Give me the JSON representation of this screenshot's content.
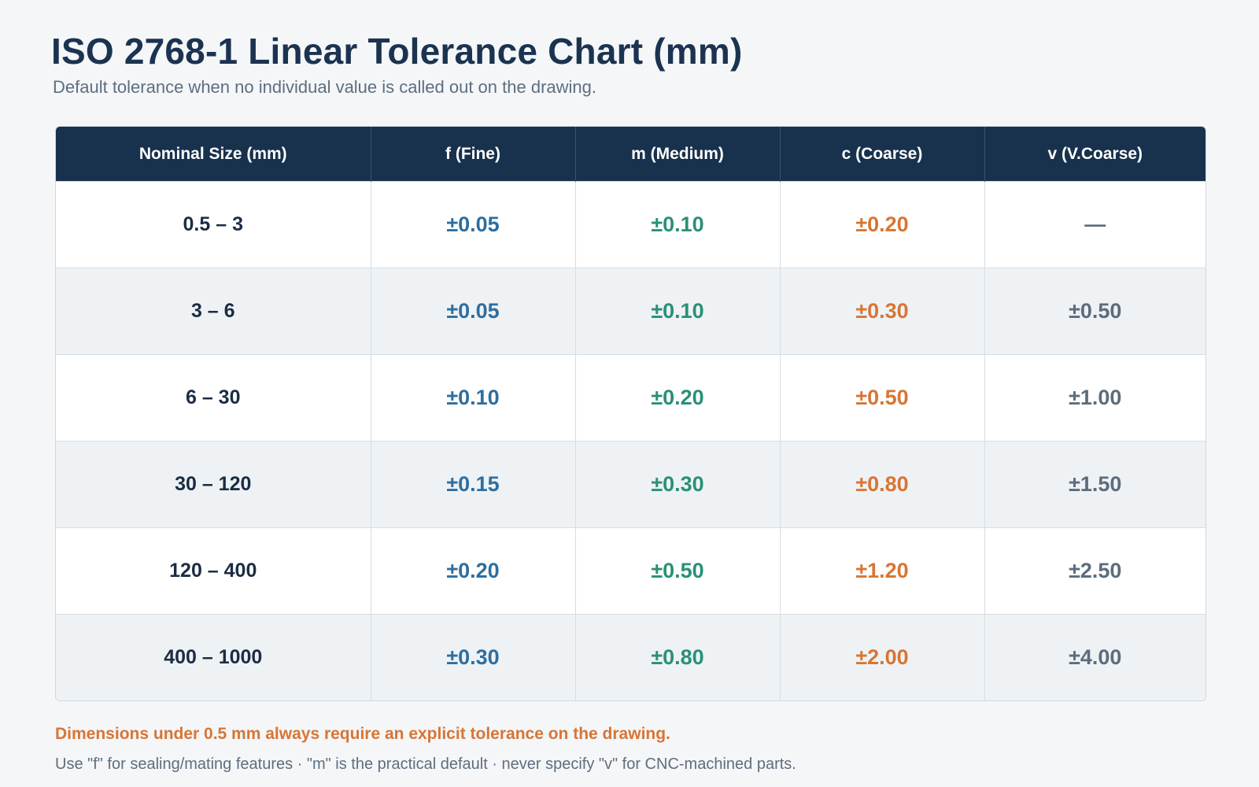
{
  "header": {
    "title": "ISO 2768-1 Linear Tolerance Chart (mm)",
    "subtitle": "Default tolerance when no individual value is called out on the drawing."
  },
  "table": {
    "columns": [
      "Nominal Size (mm)",
      "f (Fine)",
      "m (Medium)",
      "c (Coarse)",
      "v (V.Coarse)"
    ],
    "rows": [
      [
        "0.5 – 3",
        "±0.05",
        "±0.10",
        "±0.20",
        "—"
      ],
      [
        "3 – 6",
        "±0.05",
        "±0.10",
        "±0.30",
        "±0.50"
      ],
      [
        "6 – 30",
        "±0.10",
        "±0.20",
        "±0.50",
        "±1.00"
      ],
      [
        "30 – 120",
        "±0.15",
        "±0.30",
        "±0.80",
        "±1.50"
      ],
      [
        "120 – 400",
        "±0.20",
        "±0.50",
        "±1.20",
        "±2.50"
      ],
      [
        "400 – 1000",
        "±0.30",
        "±0.80",
        "±2.00",
        "±4.00"
      ]
    ]
  },
  "footer": {
    "warning": "Dimensions under 0.5 mm always require an explicit tolerance on the drawing.",
    "tip": "Use \"f\" for sealing/mating features · \"m\" is the practical default · never specify \"v\" for CNC-machined parts."
  },
  "colors": {
    "header_bg": "#18314d",
    "fine": "#2e6ea0",
    "medium": "#2a9078",
    "coarse": "#d87535",
    "very_coarse": "#5d6c7b"
  }
}
